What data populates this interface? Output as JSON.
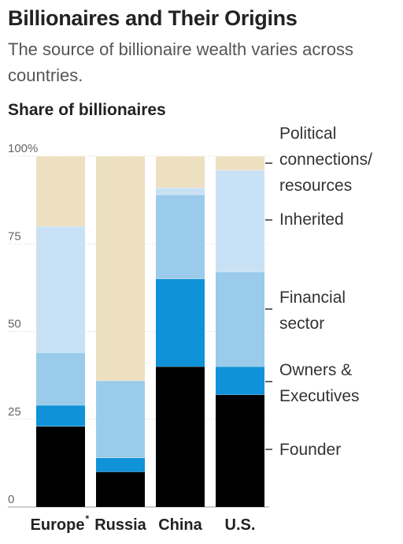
{
  "title": "Billionaires and Their Origins",
  "subtitle": "The source of billionaire wealth varies across countries.",
  "section_label": "Share of billionaires",
  "colors": {
    "Founder": "#000000",
    "Owners & Executives": "#0f92d8",
    "Financial sector": "#9bcbea",
    "Inherited": "#c9e1f4",
    "Political connections/ resources": "#ece0c1"
  },
  "chart_data": {
    "type": "bar",
    "stacked": true,
    "categories": [
      "Europe",
      "Russia",
      "China",
      "U.S."
    ],
    "footnote_marker": "*",
    "ylim": [
      0,
      100
    ],
    "yticks": [
      0,
      25,
      50,
      75,
      100
    ],
    "ytick_labels": [
      "0",
      "25",
      "50",
      "75",
      "100%"
    ],
    "series": [
      {
        "name": "Founder",
        "values": [
          23,
          10,
          40,
          32
        ]
      },
      {
        "name": "Owners & Executives",
        "values": [
          6,
          4,
          25,
          8
        ]
      },
      {
        "name": "Financial sector",
        "values": [
          15,
          22,
          24,
          27
        ]
      },
      {
        "name": "Inherited",
        "values": [
          36,
          0,
          2,
          29
        ]
      },
      {
        "name": "Political connections/ resources",
        "values": [
          20,
          64,
          9,
          4
        ]
      }
    ],
    "legend": [
      {
        "lines": [
          "Political",
          "connections/",
          "resources"
        ]
      },
      {
        "lines": [
          "Inherited"
        ]
      },
      {
        "lines": [
          "Financial",
          "sector"
        ]
      },
      {
        "lines": [
          "Owners &",
          "Executives"
        ]
      },
      {
        "lines": [
          "Founder"
        ]
      }
    ]
  }
}
